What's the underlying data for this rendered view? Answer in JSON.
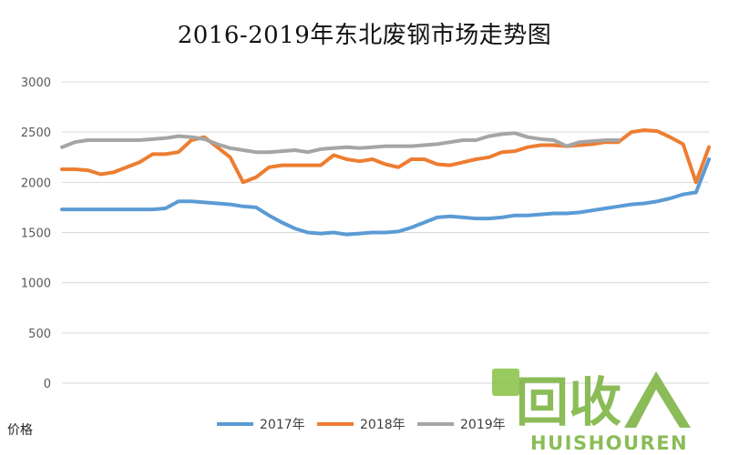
{
  "page": {
    "title": "2016-2019年东北废钢市场走势图"
  },
  "chart_data": {
    "type": "line",
    "title": "2016-2019年东北废钢市场走势图",
    "xlabel": "",
    "ylabel": "价格",
    "ylim": [
      0,
      3000
    ],
    "yticks": [
      0,
      500,
      1000,
      1500,
      2000,
      2500,
      3000
    ],
    "grid": true,
    "legend": "bottom",
    "x": [
      0,
      1,
      2,
      3,
      4,
      5,
      6,
      7,
      8,
      9,
      10,
      11,
      12,
      13,
      14,
      15,
      16,
      17,
      18,
      19,
      20,
      21,
      22,
      23,
      24,
      25,
      26,
      27,
      28,
      29,
      30,
      31,
      32,
      33,
      34,
      35,
      36,
      37,
      38,
      39,
      40,
      41,
      42,
      43,
      44,
      45,
      46,
      47,
      48,
      49,
      50
    ],
    "series": [
      {
        "name": "2017年",
        "color": "#5B9BD5",
        "values": [
          1730,
          1730,
          1730,
          1730,
          1730,
          1730,
          1730,
          1730,
          1740,
          1810,
          1810,
          1800,
          1790,
          1780,
          1760,
          1750,
          1670,
          1600,
          1540,
          1500,
          1490,
          1500,
          1480,
          1490,
          1500,
          1500,
          1510,
          1550,
          1600,
          1650,
          1660,
          1650,
          1640,
          1640,
          1650,
          1670,
          1670,
          1680,
          1690,
          1690,
          1700,
          1720,
          1740,
          1760,
          1780,
          1790,
          1810,
          1840,
          1880,
          1900,
          2230
        ]
      },
      {
        "name": "2018年",
        "color": "#ED7D31",
        "values": [
          2130,
          2130,
          2120,
          2080,
          2100,
          2150,
          2200,
          2280,
          2280,
          2300,
          2420,
          2450,
          2350,
          2250,
          2000,
          2050,
          2150,
          2170,
          2170,
          2170,
          2170,
          2270,
          2230,
          2210,
          2230,
          2180,
          2150,
          2230,
          2230,
          2180,
          2170,
          2200,
          2230,
          2250,
          2300,
          2310,
          2350,
          2370,
          2370,
          2360,
          2370,
          2380,
          2400,
          2400,
          2500,
          2520,
          2510,
          2450,
          2380,
          2000,
          2350
        ]
      },
      {
        "name": "2019年",
        "color": "#A5A5A5",
        "values": [
          2350,
          2400,
          2420,
          2420,
          2420,
          2420,
          2420,
          2430,
          2440,
          2460,
          2450,
          2430,
          2380,
          2340,
          2320,
          2300,
          2300,
          2310,
          2320,
          2300,
          2330,
          2340,
          2350,
          2340,
          2350,
          2360,
          2360,
          2360,
          2370,
          2380,
          2400,
          2420,
          2420,
          2460,
          2480,
          2490,
          2450,
          2430,
          2420,
          2360,
          2400,
          2410,
          2420,
          2420,
          null,
          null,
          null,
          null,
          null,
          null,
          null
        ]
      }
    ]
  },
  "watermark": {
    "brand": "回收",
    "latin": "HUISHOUREN"
  }
}
